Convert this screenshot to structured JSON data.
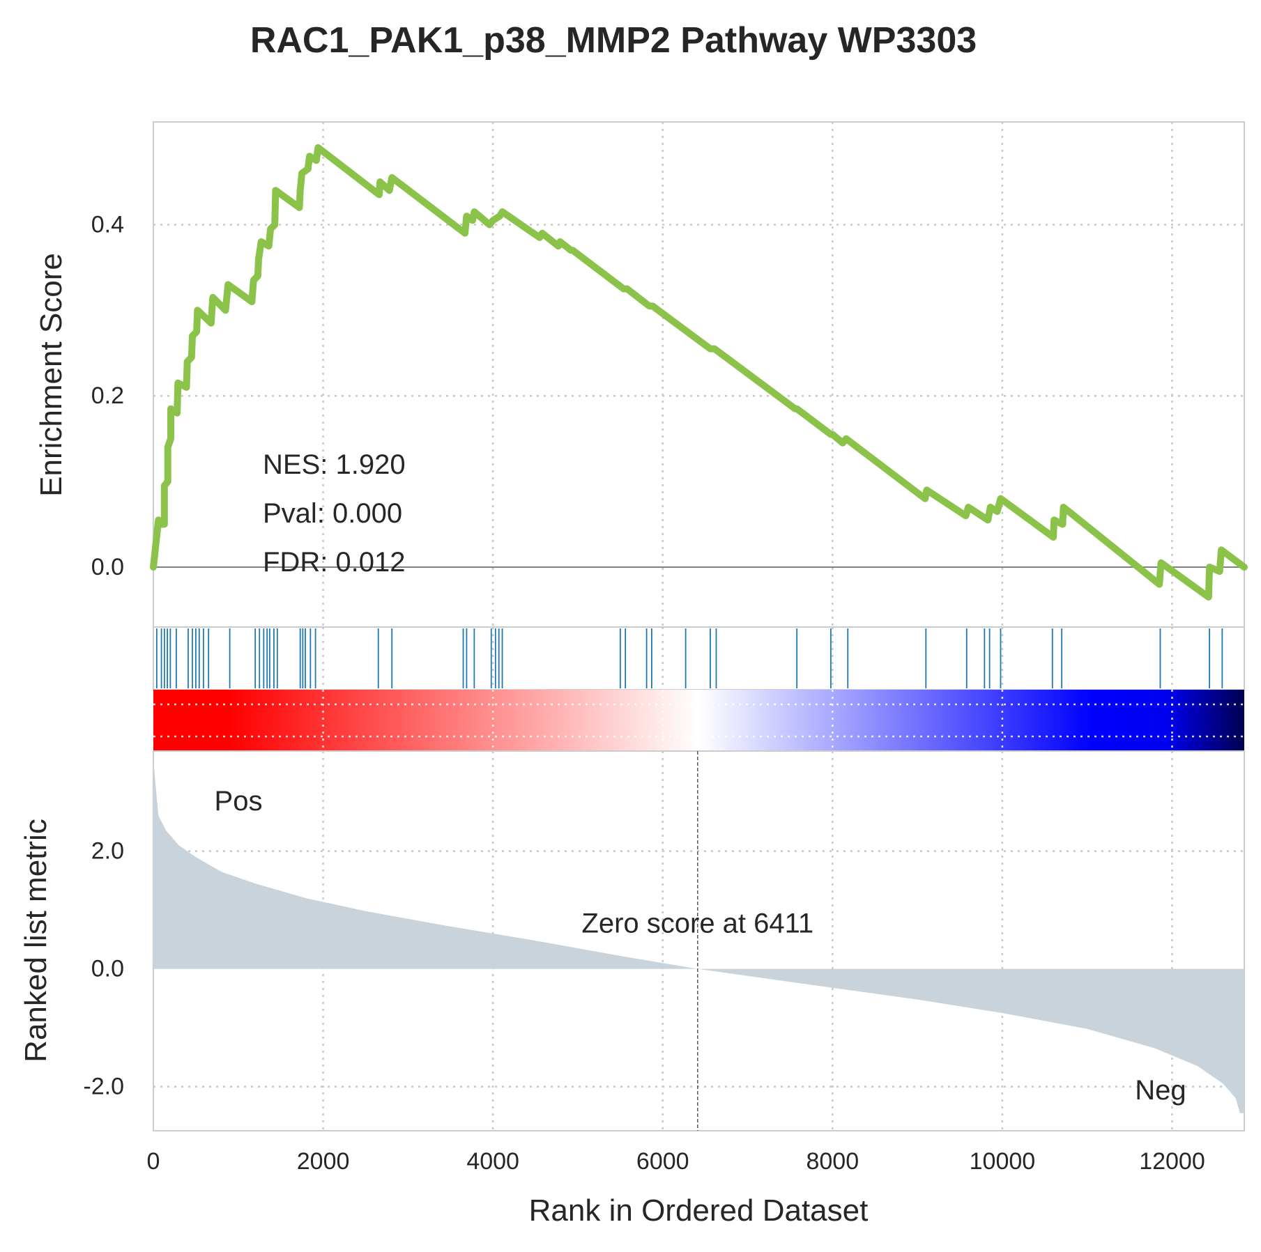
{
  "chart_data": {
    "type": "line",
    "title": "RAC1_PAK1_p38_MMP2 Pathway WP3303",
    "xlabel": "Rank in Ordered Dataset",
    "xlim": [
      0,
      12850
    ],
    "x_ticks": [
      "0",
      "2000",
      "4000",
      "6000",
      "8000",
      "10000",
      "12000"
    ],
    "grid": true,
    "colors": {
      "es_line": "#8bc34a",
      "hits": "#1f77b4",
      "metric_fill": "#c8d3dc",
      "pos": "#ff0000",
      "neg": "#0000ff",
      "text": "#262626"
    },
    "enrichment": {
      "ylabel": "Enrichment Score",
      "ylim": [
        -0.07,
        0.52
      ],
      "y_ticks": [
        "0.0",
        "0.2",
        "0.4"
      ],
      "stats": {
        "nes": "NES: 1.920",
        "pval": "Pval: 0.000",
        "fdr": "FDR: 0.012"
      },
      "points": [
        [
          0,
          0.0
        ],
        [
          60,
          0.055
        ],
        [
          60,
          0.05
        ],
        [
          130,
          0.05
        ],
        [
          130,
          0.095
        ],
        [
          170,
          0.1
        ],
        [
          170,
          0.14
        ],
        [
          205,
          0.15
        ],
        [
          205,
          0.185
        ],
        [
          280,
          0.18
        ],
        [
          290,
          0.215
        ],
        [
          390,
          0.21
        ],
        [
          400,
          0.24
        ],
        [
          450,
          0.245
        ],
        [
          460,
          0.27
        ],
        [
          510,
          0.275
        ],
        [
          520,
          0.3
        ],
        [
          680,
          0.285
        ],
        [
          700,
          0.315
        ],
        [
          850,
          0.3
        ],
        [
          880,
          0.33
        ],
        [
          1160,
          0.31
        ],
        [
          1180,
          0.335
        ],
        [
          1230,
          0.34
        ],
        [
          1240,
          0.36
        ],
        [
          1270,
          0.38
        ],
        [
          1360,
          0.375
        ],
        [
          1380,
          0.395
        ],
        [
          1430,
          0.4
        ],
        [
          1440,
          0.44
        ],
        [
          1720,
          0.42
        ],
        [
          1730,
          0.44
        ],
        [
          1750,
          0.46
        ],
        [
          1820,
          0.465
        ],
        [
          1840,
          0.48
        ],
        [
          1920,
          0.475
        ],
        [
          1940,
          0.49
        ],
        [
          2660,
          0.435
        ],
        [
          2670,
          0.45
        ],
        [
          2780,
          0.44
        ],
        [
          2810,
          0.455
        ],
        [
          3670,
          0.39
        ],
        [
          3690,
          0.41
        ],
        [
          3760,
          0.405
        ],
        [
          3780,
          0.415
        ],
        [
          3960,
          0.4
        ],
        [
          4000,
          0.405
        ],
        [
          4080,
          0.41
        ],
        [
          4110,
          0.415
        ],
        [
          4550,
          0.385
        ],
        [
          4580,
          0.39
        ],
        [
          4770,
          0.375
        ],
        [
          4790,
          0.38
        ],
        [
          4920,
          0.37
        ],
        [
          4940,
          0.37
        ],
        [
          5540,
          0.325
        ],
        [
          5580,
          0.325
        ],
        [
          5840,
          0.305
        ],
        [
          5880,
          0.305
        ],
        [
          6560,
          0.255
        ],
        [
          6610,
          0.255
        ],
        [
          7560,
          0.185
        ],
        [
          7580,
          0.185
        ],
        [
          7980,
          0.155
        ],
        [
          8000,
          0.155
        ],
        [
          8120,
          0.145
        ],
        [
          8160,
          0.15
        ],
        [
          9090,
          0.08
        ],
        [
          9110,
          0.09
        ],
        [
          9570,
          0.06
        ],
        [
          9600,
          0.07
        ],
        [
          9830,
          0.055
        ],
        [
          9860,
          0.07
        ],
        [
          9940,
          0.065
        ],
        [
          9980,
          0.08
        ],
        [
          10600,
          0.035
        ],
        [
          10610,
          0.055
        ],
        [
          10710,
          0.05
        ],
        [
          10720,
          0.07
        ],
        [
          11850,
          -0.02
        ],
        [
          11870,
          0.005
        ],
        [
          12430,
          -0.035
        ],
        [
          12440,
          0.0
        ],
        [
          12560,
          -0.005
        ],
        [
          12580,
          0.02
        ],
        [
          12850,
          0.0
        ]
      ]
    },
    "hits": [
      40,
      95,
      130,
      165,
      200,
      270,
      410,
      460,
      500,
      540,
      590,
      650,
      900,
      1200,
      1250,
      1300,
      1340,
      1370,
      1420,
      1460,
      1730,
      1760,
      1790,
      1850,
      1910,
      2650,
      2810,
      3650,
      3690,
      3780,
      3980,
      4030,
      4070,
      4110,
      5500,
      5560,
      5810,
      5870,
      6270,
      6560,
      6630,
      7580,
      7980,
      8180,
      9100,
      9580,
      9790,
      9850,
      9980,
      10590,
      10700,
      11860,
      12440,
      12590
    ],
    "metric": {
      "ylabel": "Ranked list metric",
      "ylim": [
        -2.75,
        3.7
      ],
      "y_ticks": [
        "2.0",
        "0.0",
        "-2.0"
      ],
      "zero_cross": 6411,
      "zero_label": "Zero score at 6411",
      "pos_label": "Pos",
      "neg_label": "Neg",
      "points": [
        [
          0,
          3.55
        ],
        [
          60,
          2.6
        ],
        [
          150,
          2.35
        ],
        [
          300,
          2.1
        ],
        [
          500,
          1.9
        ],
        [
          800,
          1.65
        ],
        [
          1200,
          1.45
        ],
        [
          1800,
          1.2
        ],
        [
          2500,
          0.98
        ],
        [
          3500,
          0.72
        ],
        [
          4500,
          0.48
        ],
        [
          5500,
          0.22
        ],
        [
          6411,
          0.0
        ],
        [
          7000,
          -0.12
        ],
        [
          8000,
          -0.32
        ],
        [
          9000,
          -0.52
        ],
        [
          10000,
          -0.75
        ],
        [
          11000,
          -1.02
        ],
        [
          11800,
          -1.35
        ],
        [
          12300,
          -1.65
        ],
        [
          12600,
          -1.95
        ],
        [
          12750,
          -2.2
        ],
        [
          12800,
          -2.45
        ],
        [
          12850,
          -2.45
        ]
      ]
    }
  }
}
